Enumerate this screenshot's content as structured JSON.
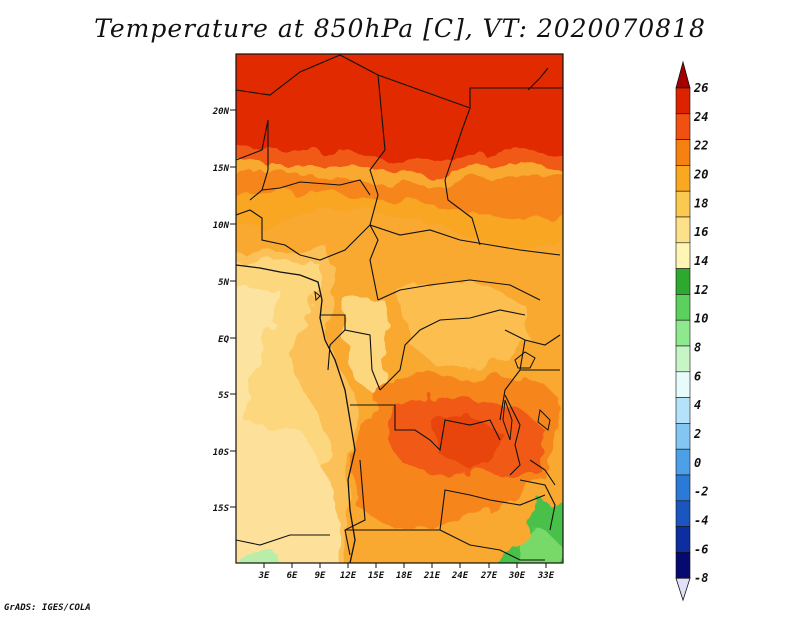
{
  "title": "Temperature at 850hPa [C], VT: 2020070818",
  "credit": "GrADS: IGES/COLA",
  "map": {
    "variable": "Temperature at 850hPa",
    "units": "C",
    "valid_time": "2020070818",
    "region": "Central Africa",
    "lon_range": [
      1,
      35
    ],
    "lat_range": [
      -20,
      24.5
    ],
    "lat_labels": [
      "20N",
      "15N",
      "10N",
      "5N",
      "EQ",
      "5S",
      "10S",
      "15S"
    ],
    "lon_labels": [
      "3E",
      "6E",
      "9E",
      "12E",
      "15E",
      "18E",
      "21E",
      "24E",
      "27E",
      "30E",
      "33E"
    ]
  },
  "colorbar": {
    "labels": [
      "26",
      "24",
      "22",
      "20",
      "18",
      "16",
      "14",
      "12",
      "10",
      "8",
      "6",
      "4",
      "2",
      "0",
      "-2",
      "-4",
      "-6",
      "-8"
    ],
    "colors": [
      "#a50000",
      "#dd2200",
      "#f05010",
      "#f68010",
      "#f9a820",
      "#fbc850",
      "#fde08a",
      "#fff5b5",
      "#2ea82e",
      "#5cd05c",
      "#8ee88e",
      "#c6f5c6",
      "#e8fbfb",
      "#b5e2fb",
      "#84c6f2",
      "#4da0e8",
      "#2c7ad8",
      "#1a55c0",
      "#0c2ea0",
      "#060a70",
      "#e0e0f8"
    ]
  }
}
